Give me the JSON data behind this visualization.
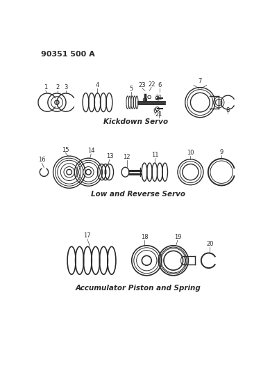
{
  "bg_color": "#ffffff",
  "line_color": "#2a2a2a",
  "title_text": "90351 500 A",
  "section1_label": "Kickdown Servo",
  "section2_label": "Low and Reverse Servo",
  "section3_label": "Accumulator Piston and Spring",
  "fig_w": 3.89,
  "fig_h": 5.33,
  "dpi": 100
}
